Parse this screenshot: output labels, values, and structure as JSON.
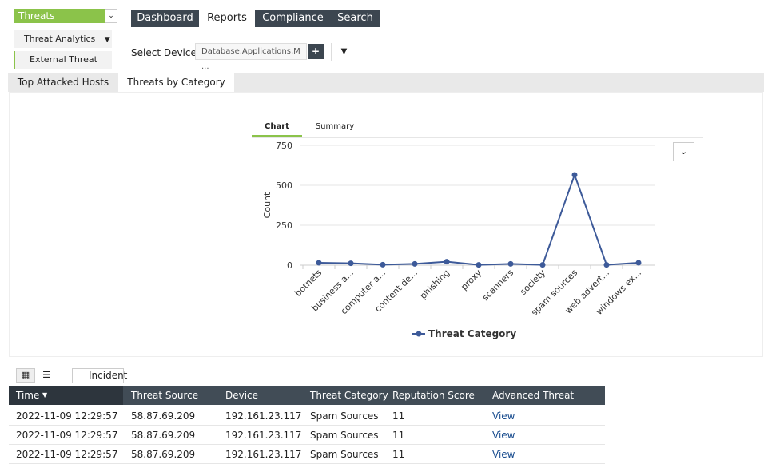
{
  "sidebar": {
    "module": "Threats",
    "menu": "Threat Analytics",
    "submenu": "External Threat"
  },
  "nav": [
    "Dashboard",
    "Reports",
    "Compliance",
    "Search"
  ],
  "filter": {
    "label": "Select Device",
    "device": "Database,Applications,M ..."
  },
  "report_tabs": [
    "Top Attacked Hosts",
    "Threats by Category"
  ],
  "chart_tabs": [
    "Chart",
    "Summary"
  ],
  "chart_data": {
    "type": "line",
    "y_label": "Count",
    "categories": [
      "botnets",
      "business a...",
      "computer a...",
      "content de...",
      "phishing",
      "proxy",
      "scanners",
      "society",
      "spam sources",
      "web advert...",
      "windows ex..."
    ],
    "series": [
      {
        "name": "Threat Category",
        "color": "#3d5a99",
        "values": [
          15,
          12,
          3,
          8,
          22,
          2,
          8,
          2,
          565,
          2,
          15
        ]
      }
    ],
    "ylim": [
      0,
      750
    ],
    "yticks": [
      0,
      250,
      500,
      750
    ],
    "grid": true
  },
  "toolbar": {
    "incident": "Incident"
  },
  "table": {
    "columns": [
      "Time",
      "Threat Source",
      "Device",
      "Threat Category",
      "Reputation Score",
      "Advanced Threat Analytics"
    ],
    "rows": [
      [
        "2022-11-09 12:29:57",
        "58.87.69.209",
        "192.161.23.117",
        "Spam Sources",
        "11",
        "View"
      ],
      [
        "2022-11-09 12:29:57",
        "58.87.69.209",
        "192.161.23.117",
        "Spam Sources",
        "11",
        "View"
      ],
      [
        "2022-11-09 12:29:57",
        "58.87.69.209",
        "192.161.23.117",
        "Spam Sources",
        "11",
        "View"
      ]
    ]
  }
}
